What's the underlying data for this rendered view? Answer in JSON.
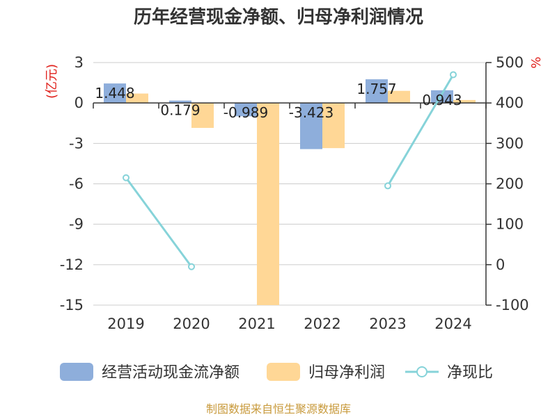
{
  "chart_data": {
    "type": "bar",
    "title": "历年经营现金净额、归母净利润情况",
    "categories": [
      "2019",
      "2020",
      "2021",
      "2022",
      "2023",
      "2024"
    ],
    "series": [
      {
        "name": "经营活动现金流净额",
        "type": "bar",
        "axis": "left",
        "color": "#8eaedb",
        "values": [
          1.448,
          0.179,
          -0.989,
          -3.423,
          1.757,
          0.943
        ],
        "labels": [
          "1.448",
          "0.179",
          "-0.989",
          "-3.423",
          "1.757",
          "0.943"
        ]
      },
      {
        "name": "归母净利润",
        "type": "bar",
        "axis": "left",
        "color": "#ffd796",
        "values": [
          0.7,
          -1.85,
          -15.0,
          -3.35,
          0.9,
          0.22
        ]
      },
      {
        "name": "净现比",
        "type": "line",
        "axis": "right",
        "color": "#86d3d9",
        "values": [
          215,
          -5,
          null,
          null,
          195,
          470
        ]
      }
    ],
    "y_left": {
      "label": "(亿元)",
      "min": -15,
      "max": 3,
      "ticks": [
        3,
        0,
        -3,
        -6,
        -9,
        -12,
        -15
      ]
    },
    "y_right": {
      "label": "%",
      "min": -100,
      "max": 500,
      "ticks": [
        500,
        400,
        300,
        200,
        100,
        0,
        -100
      ]
    },
    "grid": true,
    "legend_position": "bottom"
  },
  "source": "制图数据来自恒生聚源数据库"
}
